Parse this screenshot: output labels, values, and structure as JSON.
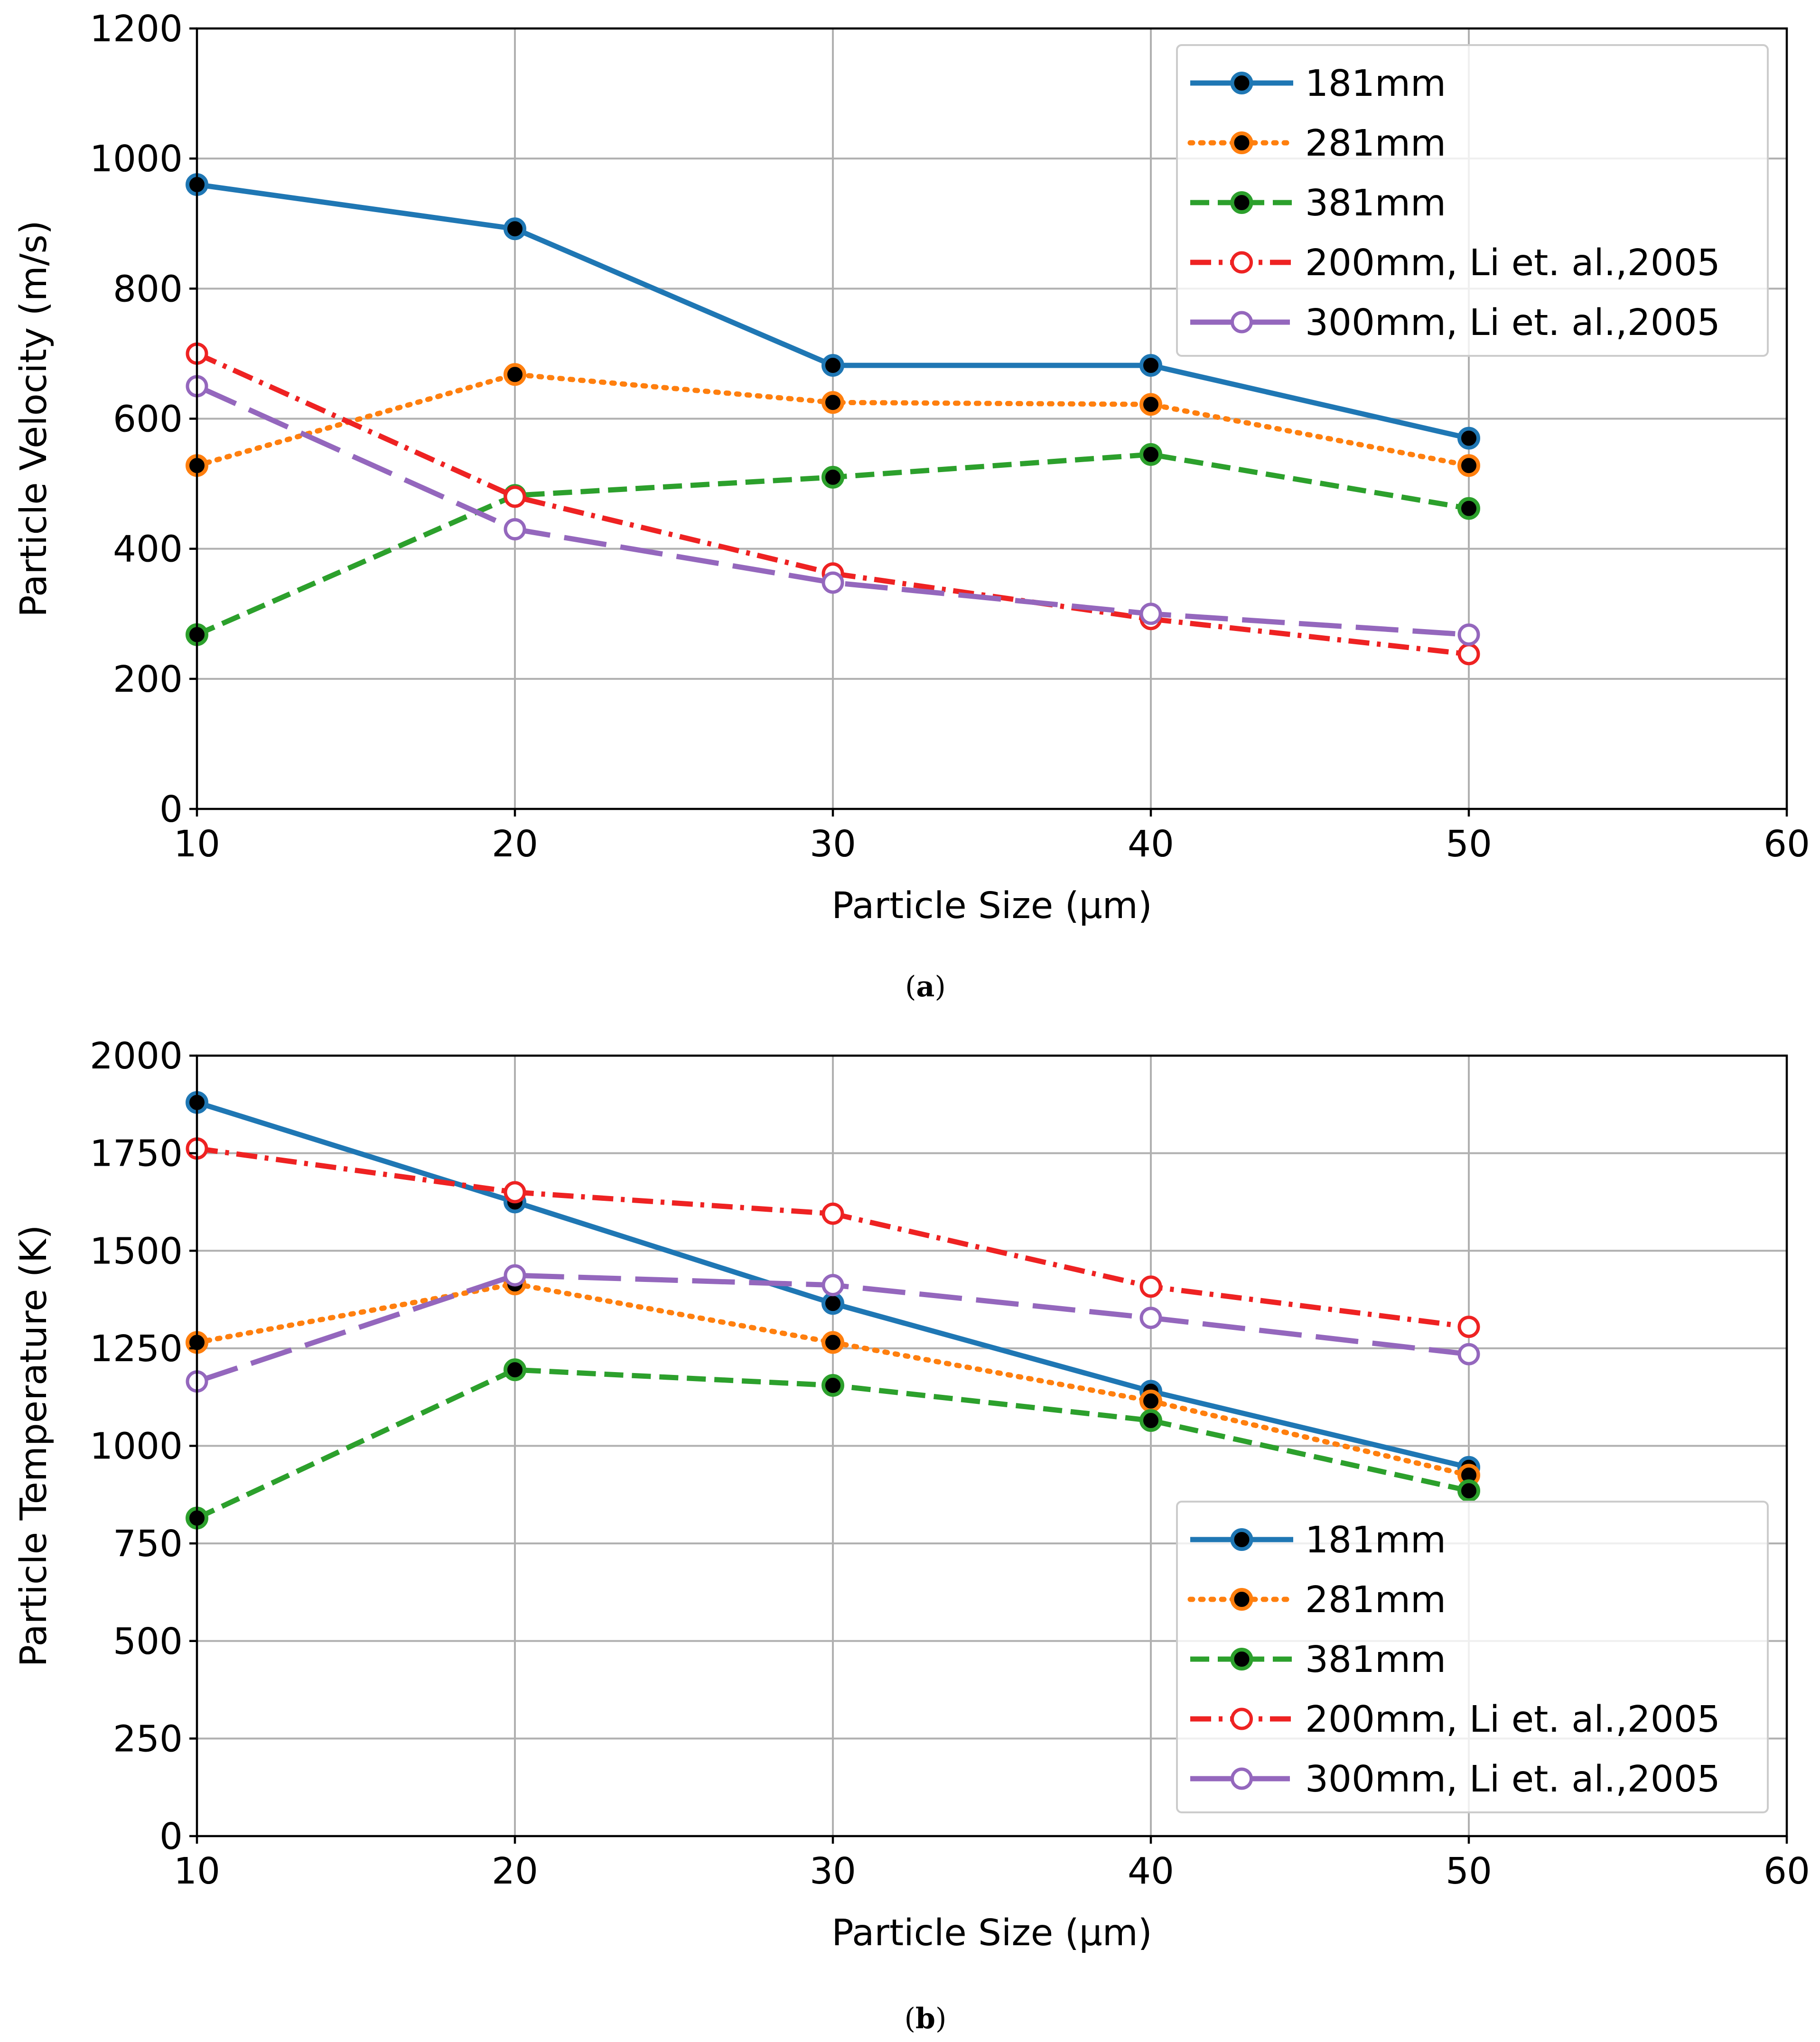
{
  "chart_data": [
    {
      "id": "a",
      "type": "line",
      "caption": "a",
      "xlabel": "Particle Size (µm)",
      "ylabel": "Particle Velocity (m/s)",
      "xlim": [
        10,
        60
      ],
      "ylim": [
        0,
        1200
      ],
      "xticks": [
        "10",
        "20",
        "30",
        "40",
        "50",
        "60"
      ],
      "yticks": [
        "0",
        "200",
        "400",
        "600",
        "800",
        "1000",
        "1200"
      ],
      "grid": true,
      "legend_position": "top-right",
      "x": [
        10,
        20,
        30,
        40,
        50
      ],
      "series": [
        {
          "name": "181mm",
          "values": [
            960,
            892,
            682,
            682,
            570
          ],
          "color": "#1f77b4",
          "dash": "solid",
          "marker": "filled"
        },
        {
          "name": "281mm",
          "values": [
            528,
            668,
            625,
            622,
            528
          ],
          "color": "#ff7f0e",
          "dash": "dotted",
          "marker": "filled"
        },
        {
          "name": "381mm",
          "values": [
            268,
            482,
            510,
            545,
            462
          ],
          "color": "#2ca02c",
          "dash": "dashed",
          "marker": "filled"
        },
        {
          "name": "200mm, Li et. al.,2005",
          "values": [
            700,
            480,
            362,
            292,
            238
          ],
          "color": "#ee2222",
          "dash": "dashdot",
          "marker": "open"
        },
        {
          "name": "300mm, Li et. al.,2005",
          "values": [
            650,
            430,
            348,
            300,
            268
          ],
          "color": "#9467bd",
          "dash": "longdash",
          "marker": "open"
        }
      ]
    },
    {
      "id": "b",
      "type": "line",
      "caption": "b",
      "xlabel": "Particle Size (µm)",
      "ylabel": "Particle Temperature (K)",
      "xlim": [
        10,
        60
      ],
      "ylim": [
        0,
        2000
      ],
      "xticks": [
        "10",
        "20",
        "30",
        "40",
        "50",
        "60"
      ],
      "yticks": [
        "0",
        "250",
        "500",
        "750",
        "1000",
        "1250",
        "1500",
        "1750",
        "2000"
      ],
      "grid": true,
      "legend_position": "bottom-right",
      "x": [
        10,
        20,
        30,
        40,
        50
      ],
      "series": [
        {
          "name": "181mm",
          "values": [
            1880,
            1625,
            1365,
            1140,
            945
          ],
          "color": "#1f77b4",
          "dash": "solid",
          "marker": "filled"
        },
        {
          "name": "281mm",
          "values": [
            1265,
            1415,
            1265,
            1115,
            925
          ],
          "color": "#ff7f0e",
          "dash": "dotted",
          "marker": "filled"
        },
        {
          "name": "381mm",
          "values": [
            815,
            1195,
            1155,
            1065,
            885
          ],
          "color": "#2ca02c",
          "dash": "dashed",
          "marker": "filled"
        },
        {
          "name": "200mm, Li et. al.,2005",
          "values": [
            1762,
            1650,
            1595,
            1408,
            1305
          ],
          "color": "#ee2222",
          "dash": "dashdot",
          "marker": "open"
        },
        {
          "name": "300mm, Li et. al.,2005",
          "values": [
            1165,
            1437,
            1412,
            1328,
            1235
          ],
          "color": "#9467bd",
          "dash": "longdash",
          "marker": "open"
        }
      ]
    }
  ]
}
